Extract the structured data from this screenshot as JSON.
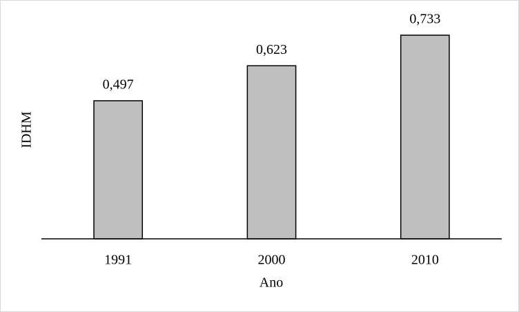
{
  "chart_data": {
    "type": "bar",
    "x_label": "Ano",
    "y_label": "IDHM",
    "categories": [
      "1991",
      "2000",
      "2010"
    ],
    "values": [
      0.497,
      0.623,
      0.733
    ],
    "value_labels": [
      "0,497",
      "0,623",
      "0,733"
    ],
    "color": "#bfbfbf",
    "ylim": [
      0,
      0.8
    ],
    "grid": false
  }
}
